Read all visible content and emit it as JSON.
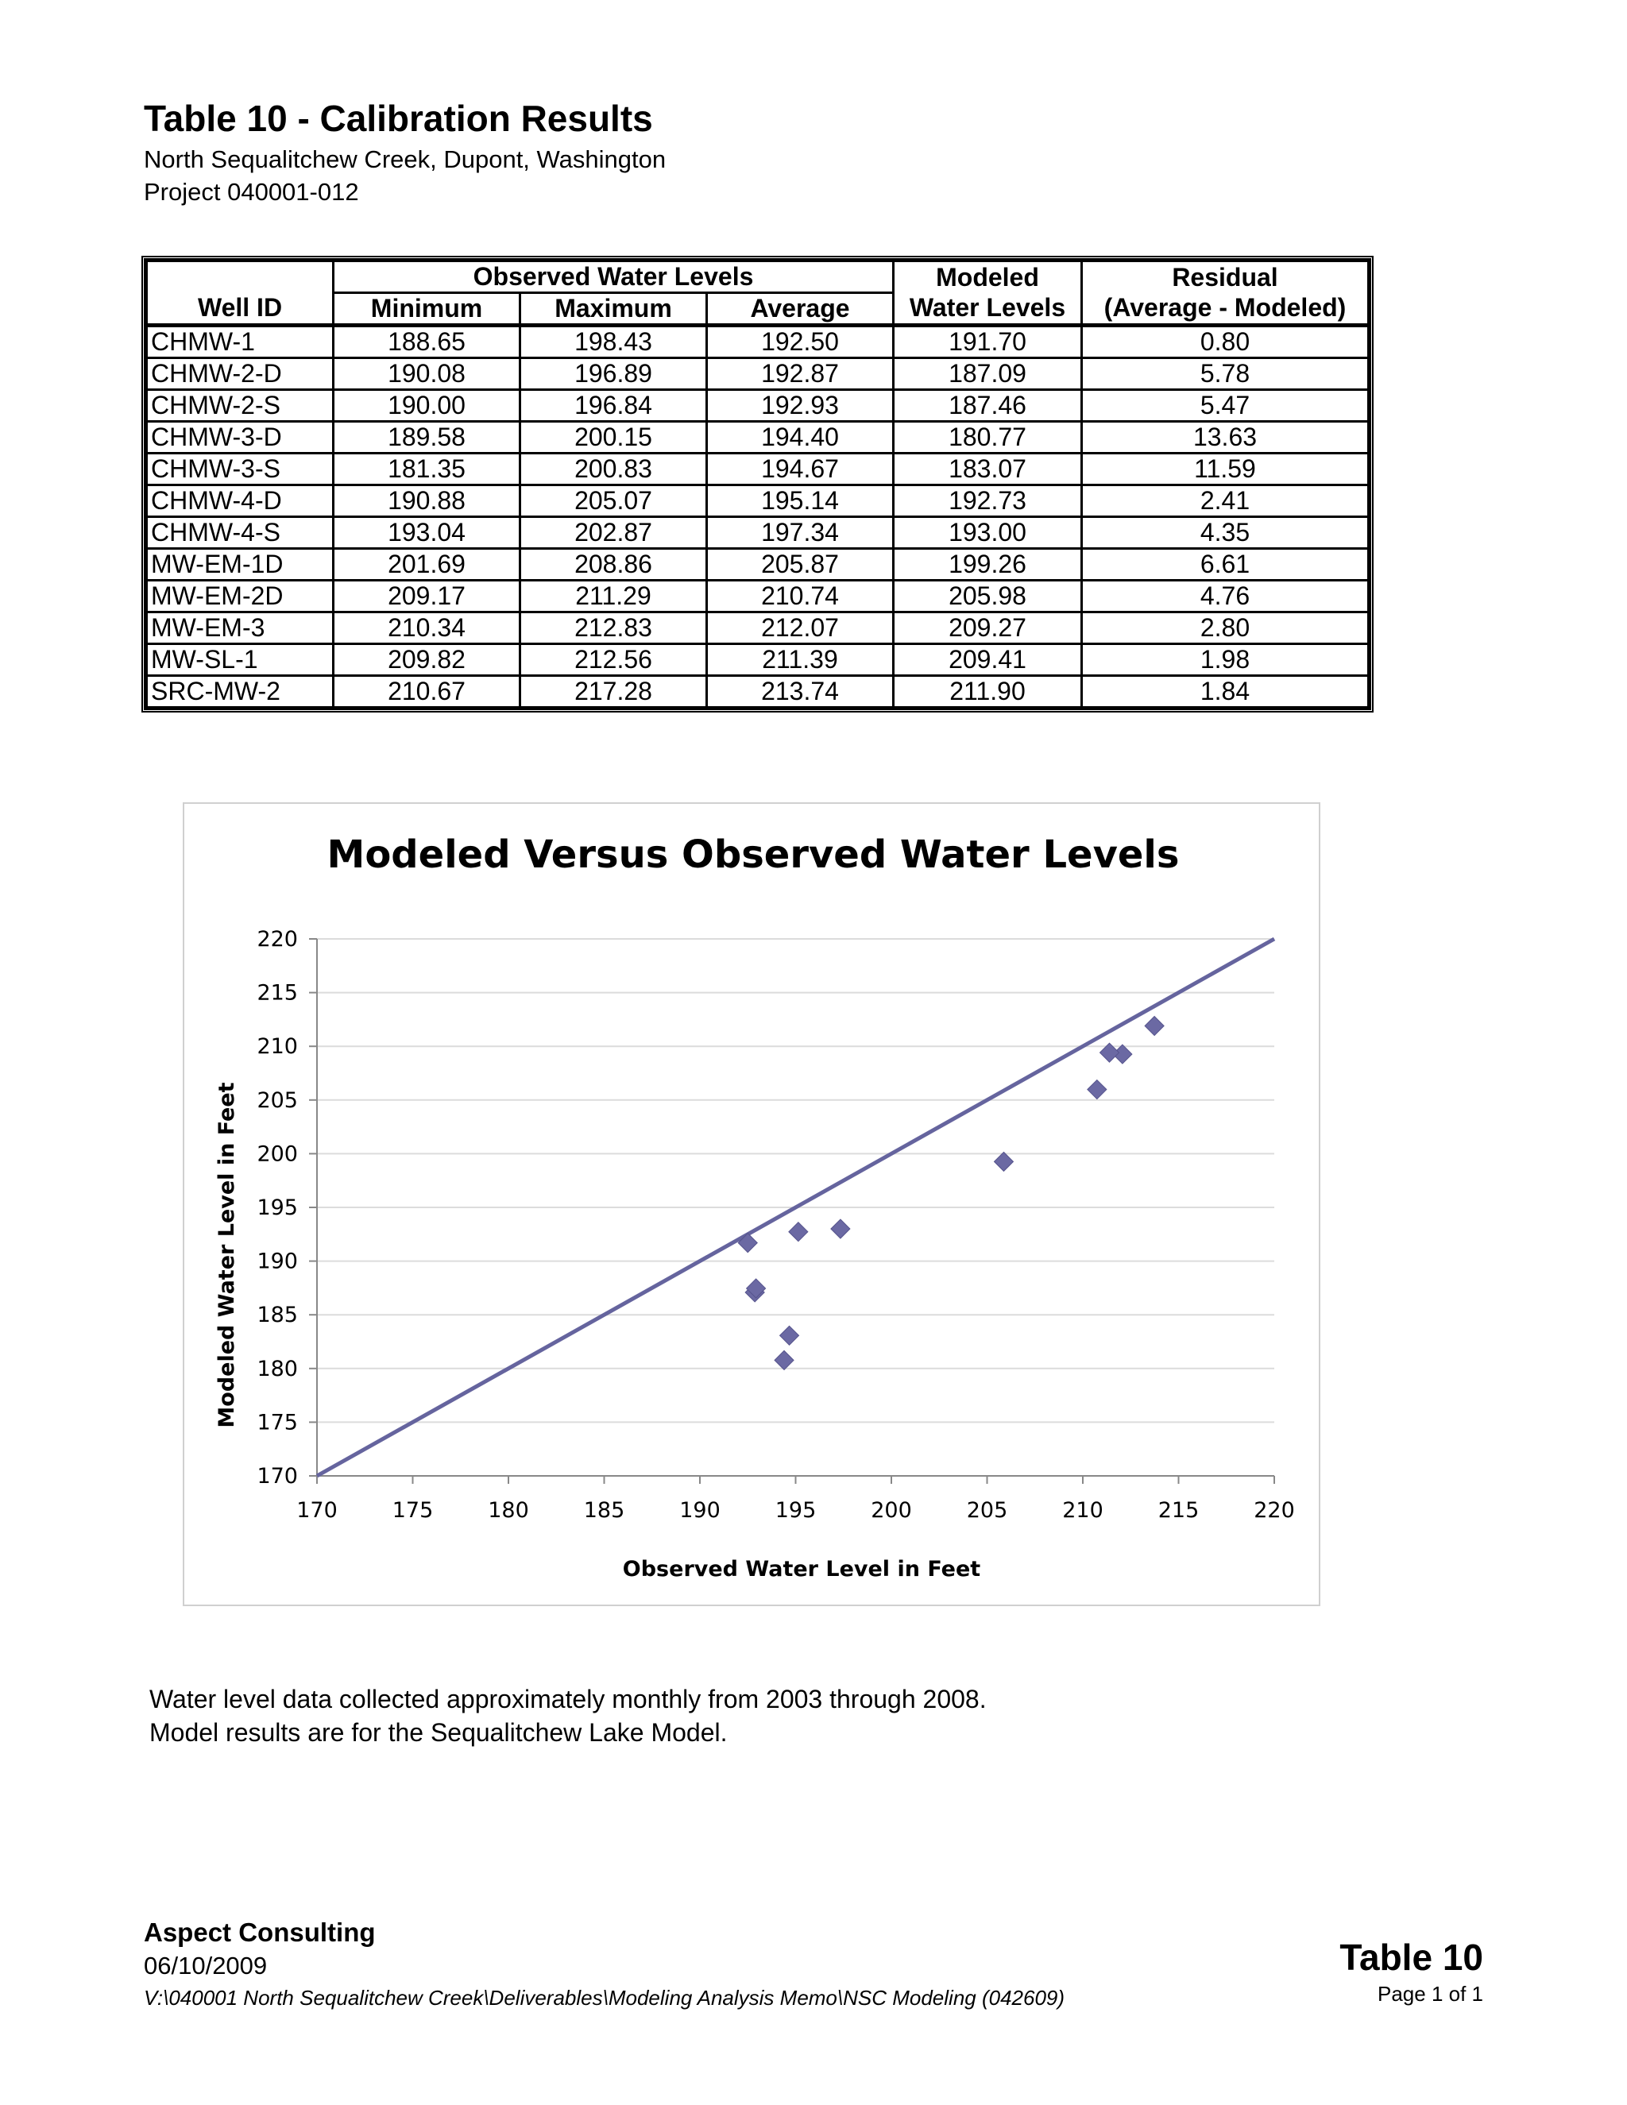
{
  "document": {
    "title": "Table 10 - Calibration Results",
    "subtitle_lines": [
      "North Sequalitchew Creek, Dupont, Washington",
      "Project 040001-012"
    ]
  },
  "table": {
    "headers": {
      "well_id": "Well ID",
      "observed_group": "Observed Water Levels",
      "minimum": "Minimum",
      "maximum": "Maximum",
      "average": "Average",
      "modeled_line1": "Modeled",
      "modeled_line2": "Water Levels",
      "residual_line1": "Residual",
      "residual_line2": "(Average - Modeled)"
    },
    "rows": [
      {
        "well": "CHMW-1",
        "min": "188.65",
        "max": "198.43",
        "avg": "192.50",
        "modeled": "191.70",
        "residual": "0.80"
      },
      {
        "well": "CHMW-2-D",
        "min": "190.08",
        "max": "196.89",
        "avg": "192.87",
        "modeled": "187.09",
        "residual": "5.78"
      },
      {
        "well": "CHMW-2-S",
        "min": "190.00",
        "max": "196.84",
        "avg": "192.93",
        "modeled": "187.46",
        "residual": "5.47"
      },
      {
        "well": "CHMW-3-D",
        "min": "189.58",
        "max": "200.15",
        "avg": "194.40",
        "modeled": "180.77",
        "residual": "13.63"
      },
      {
        "well": "CHMW-3-S",
        "min": "181.35",
        "max": "200.83",
        "avg": "194.67",
        "modeled": "183.07",
        "residual": "11.59"
      },
      {
        "well": "CHMW-4-D",
        "min": "190.88",
        "max": "205.07",
        "avg": "195.14",
        "modeled": "192.73",
        "residual": "2.41"
      },
      {
        "well": "CHMW-4-S",
        "min": "193.04",
        "max": "202.87",
        "avg": "197.34",
        "modeled": "193.00",
        "residual": "4.35"
      },
      {
        "well": "MW-EM-1D",
        "min": "201.69",
        "max": "208.86",
        "avg": "205.87",
        "modeled": "199.26",
        "residual": "6.61"
      },
      {
        "well": "MW-EM-2D",
        "min": "209.17",
        "max": "211.29",
        "avg": "210.74",
        "modeled": "205.98",
        "residual": "4.76"
      },
      {
        "well": "MW-EM-3",
        "min": "210.34",
        "max": "212.83",
        "avg": "212.07",
        "modeled": "209.27",
        "residual": "2.80"
      },
      {
        "well": "MW-SL-1",
        "min": "209.82",
        "max": "212.56",
        "avg": "211.39",
        "modeled": "209.41",
        "residual": "1.98"
      },
      {
        "well": "SRC-MW-2",
        "min": "210.67",
        "max": "217.28",
        "avg": "213.74",
        "modeled": "211.90",
        "residual": "1.84"
      }
    ]
  },
  "chart_data": {
    "type": "scatter",
    "title": "Modeled Versus Observed Water Levels",
    "xlabel": "Observed Water Level in Feet",
    "ylabel": "Modeled Water Level in Feet",
    "xlim": [
      170,
      220
    ],
    "ylim": [
      170,
      220
    ],
    "xticks": [
      170,
      175,
      180,
      185,
      190,
      195,
      200,
      205,
      210,
      215,
      220
    ],
    "yticks": [
      170,
      175,
      180,
      185,
      190,
      195,
      200,
      205,
      210,
      215,
      220
    ],
    "grid": "horizontal",
    "legend": "none",
    "marker_color": "#6b69a3",
    "line_color": "#65649e",
    "reference_line": {
      "x": [
        170,
        220
      ],
      "y": [
        170,
        220
      ]
    },
    "points": [
      {
        "x": 192.5,
        "y": 191.7
      },
      {
        "x": 192.87,
        "y": 187.09
      },
      {
        "x": 192.93,
        "y": 187.46
      },
      {
        "x": 194.4,
        "y": 180.77
      },
      {
        "x": 194.67,
        "y": 183.07
      },
      {
        "x": 195.14,
        "y": 192.73
      },
      {
        "x": 197.34,
        "y": 193.0
      },
      {
        "x": 205.87,
        "y": 199.26
      },
      {
        "x": 210.74,
        "y": 205.98
      },
      {
        "x": 212.07,
        "y": 209.27
      },
      {
        "x": 211.39,
        "y": 209.41
      },
      {
        "x": 213.74,
        "y": 211.9
      }
    ]
  },
  "notes": [
    "Water level data collected approximately monthly from 2003 through 2008.",
    "Model results are for the Sequalitchew Lake Model."
  ],
  "footer": {
    "company": "Aspect Consulting",
    "date": "06/10/2009",
    "path": "V:\\040001 North Sequalitchew Creek\\Deliverables\\Modeling Analysis Memo\\NSC Modeling (042609)",
    "table_label": "Table 10",
    "page": "Page  1 of 1"
  }
}
